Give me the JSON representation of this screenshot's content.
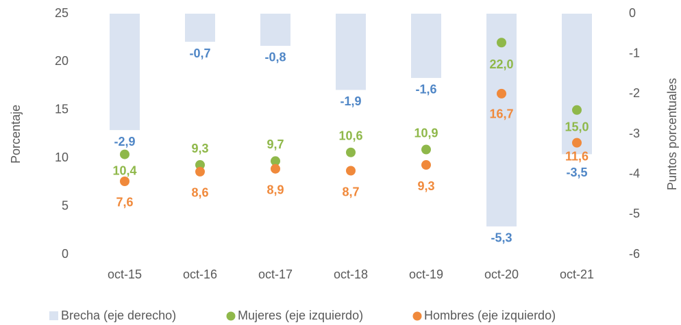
{
  "chart_data": {
    "type": "bar",
    "categories": [
      "oct-15",
      "oct-16",
      "oct-17",
      "oct-18",
      "oct-19",
      "oct-20",
      "oct-21"
    ],
    "ylabel": "Porcentaje",
    "y2label": "Puntos porcentuales",
    "ylim": [
      0,
      25
    ],
    "yticks": [
      0,
      5,
      10,
      15,
      20,
      25
    ],
    "y2lim": [
      -6,
      0
    ],
    "y2ticks": [
      0,
      -1,
      -2,
      -3,
      -4,
      -5,
      -6
    ],
    "legend": "bottom",
    "grid": false,
    "series": [
      {
        "name": "Brecha (eje derecho)",
        "type": "bar",
        "axis": "y2",
        "color": "#dae3f1",
        "label_color": "#4f86c6",
        "values": [
          -2.9,
          -0.7,
          -0.8,
          -1.9,
          -1.6,
          -5.3,
          -3.5
        ],
        "value_labels": [
          "-2,9",
          "-0,7",
          "-0,8",
          "-1,9",
          "-1,6",
          "-5,3",
          "-3,5"
        ]
      },
      {
        "name": "Mujeres (eje izquierdo)",
        "type": "scatter",
        "color": "#8fb84a",
        "label_color": "#8fb84a",
        "values": [
          10.4,
          9.3,
          9.7,
          10.6,
          10.9,
          22.0,
          15.0
        ],
        "value_labels": [
          "10,4",
          "9,3",
          "9,7",
          "10,6",
          "10,9",
          "22,0",
          "15,0"
        ]
      },
      {
        "name": "Hombres (eje izquierdo)",
        "type": "scatter",
        "color": "#f0893b",
        "label_color": "#f0893b",
        "values": [
          7.6,
          8.6,
          8.9,
          8.7,
          9.3,
          16.7,
          11.6
        ],
        "value_labels": [
          "7,6",
          "8,6",
          "8,9",
          "8,7",
          "9,3",
          "16,7",
          "11,6"
        ]
      }
    ]
  }
}
